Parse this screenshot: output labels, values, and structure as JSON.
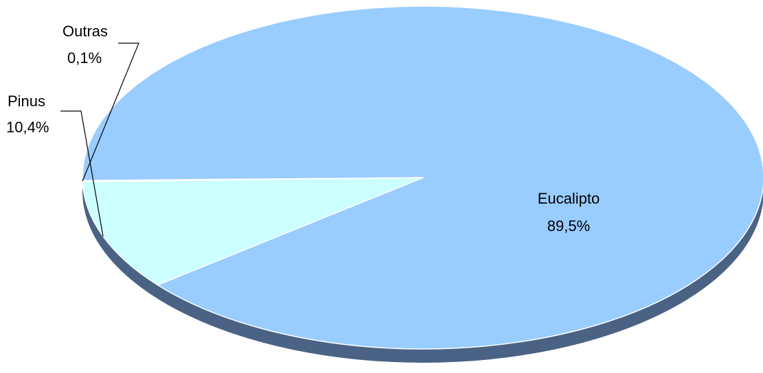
{
  "chart_data": {
    "type": "pie",
    "title": "",
    "categories": [
      "Eucalipto",
      "Pinus",
      "Outras"
    ],
    "values": [
      89.5,
      10.4,
      0.1
    ],
    "value_labels": [
      "89,5%",
      "10,4%",
      "0,1%"
    ],
    "unit": "%",
    "legend": "none",
    "three_d": true,
    "colors": {
      "Eucalipto": "#99CCFF",
      "Pinus": "#CCFFFF",
      "Outras": "#99CCFF",
      "side": "#4A6385",
      "edge": "#FFFFFF"
    }
  }
}
